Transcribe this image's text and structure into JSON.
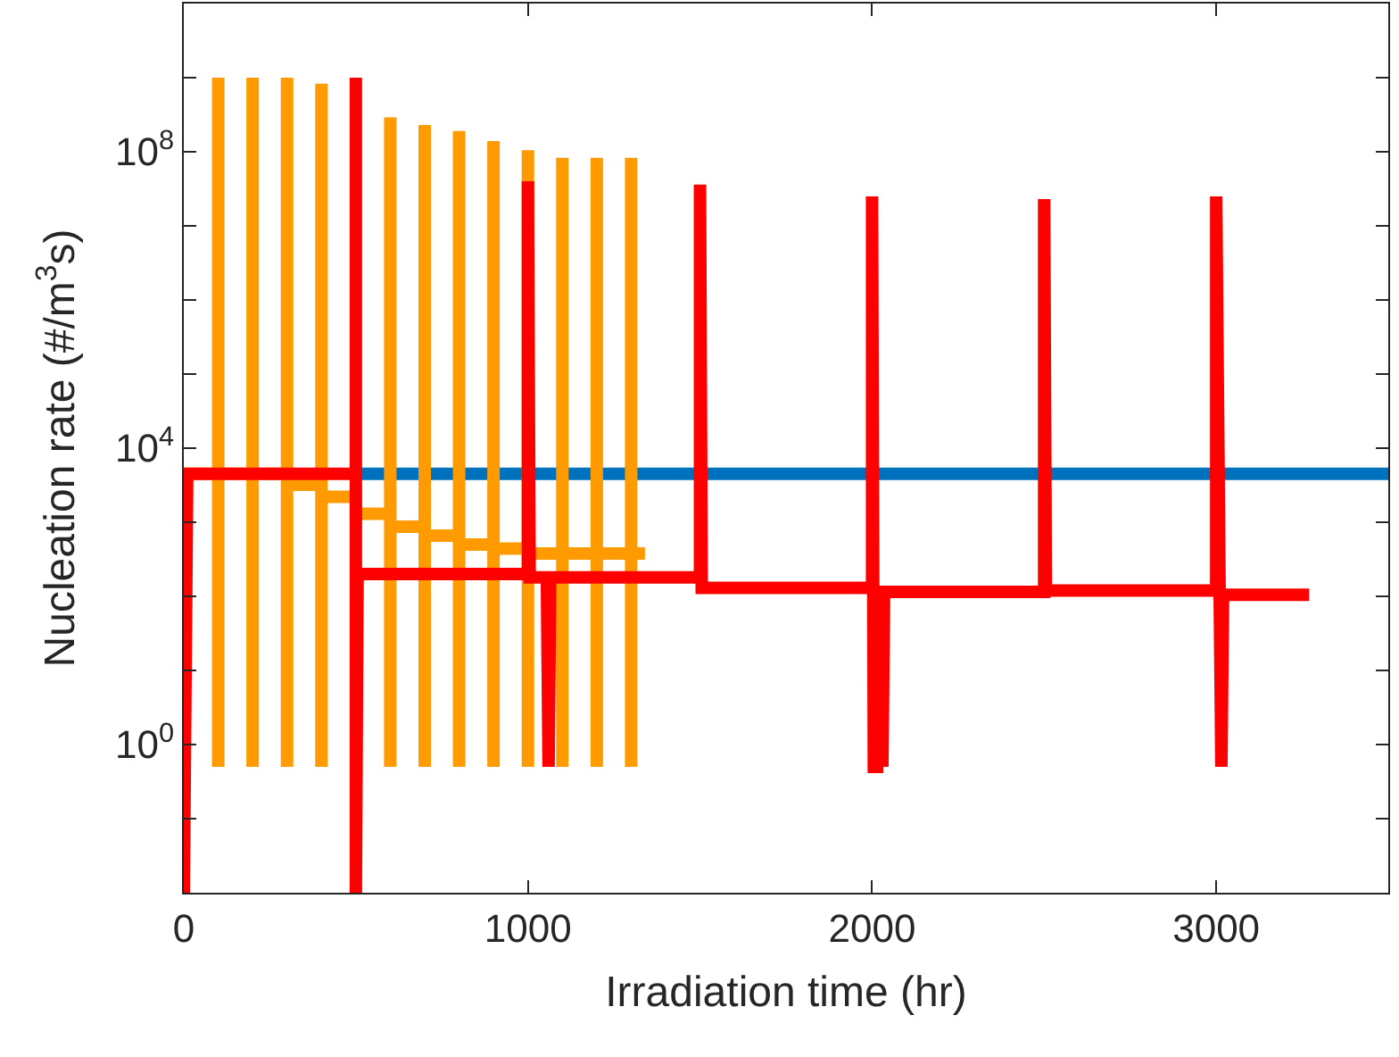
{
  "chart_data": {
    "type": "line",
    "xlabel": "Irradiation time (hr)",
    "ylabel": "Nucleation rate (#/m$^{3}$s)",
    "log": "y",
    "marker": "none",
    "line_style": "solid",
    "xlim": [
      0,
      3500
    ],
    "xticks": [
      0,
      1000,
      2000,
      3000
    ],
    "ylim": [
      0.01,
      10000000000
    ],
    "yticks": [
      {
        "value": 0.01,
        "label": null
      },
      {
        "value": 0.1,
        "label": null
      },
      {
        "value": 1,
        "label": "10$^{0}$"
      },
      {
        "value": 10,
        "label": null
      },
      {
        "value": 100,
        "label": null
      },
      {
        "value": 1000,
        "label": null
      },
      {
        "value": 10000,
        "label": "10$^{4}$"
      },
      {
        "value": 100000,
        "label": null
      },
      {
        "value": 1000000,
        "label": null
      },
      {
        "value": 10000000,
        "label": null
      },
      {
        "value": 100000000,
        "label": "10$^{8}$"
      },
      {
        "value": 1000000000,
        "label": null
      },
      {
        "value": 10000000000,
        "label": null
      }
    ],
    "series": [
      {
        "color": "#0072bd",
        "x": [
          500,
          3500
        ],
        "values": [
          4500,
          4500
        ]
      },
      {
        "color": "#ff9a00",
        "x": [
          0,
          100,
          100,
          100,
          100,
          200,
          200,
          200,
          200,
          300,
          300,
          300,
          300,
          400,
          400,
          400,
          400,
          500,
          500,
          600,
          600,
          600,
          600,
          700,
          700,
          700,
          700,
          800,
          800,
          800,
          800,
          900,
          900,
          900,
          900,
          1000,
          1000,
          1000,
          1000,
          1100,
          1100,
          1100,
          1100,
          1200,
          1200,
          1200,
          1200,
          1300,
          1300,
          1300,
          1300,
          1340
        ],
        "values": [
          4500,
          4500,
          1000000000,
          0.5,
          4500,
          4500,
          1000000000,
          0.5,
          4500,
          4500,
          1000000000,
          0.5,
          3200,
          3200,
          830000000,
          0.5,
          2200,
          2200,
          1300,
          1300,
          290000000,
          0.5,
          870,
          870,
          230000000,
          0.5,
          660,
          660,
          190000000,
          0.5,
          500,
          500,
          140000000,
          0.5,
          440,
          440,
          105000000,
          0.5,
          380,
          380,
          83000000,
          0.5,
          380,
          380,
          83000000,
          0.5,
          380,
          380,
          83000000,
          0.5,
          380,
          380
        ]
      },
      {
        "color": "#ff0000",
        "x": [
          0,
          10,
          500,
          500,
          500,
          505,
          1000,
          1000,
          1005,
          1055,
          1060,
          1065,
          1500,
          1500,
          1505,
          2000,
          2000,
          2005,
          2015,
          2020,
          2030,
          2035,
          2500,
          2500,
          2505,
          3000,
          3000,
          3010,
          3015,
          3020,
          3270
        ],
        "values": [
          0.01,
          4500,
          4500,
          1000000000,
          0.01,
          200,
          200,
          40000000,
          180,
          180,
          0.5,
          180,
          180,
          36000000,
          130,
          130,
          25000000,
          0.5,
          0.5,
          115,
          0.5,
          115,
          115,
          23000000,
          120,
          120,
          25000000,
          105,
          0.5,
          105,
          105
        ]
      }
    ]
  }
}
